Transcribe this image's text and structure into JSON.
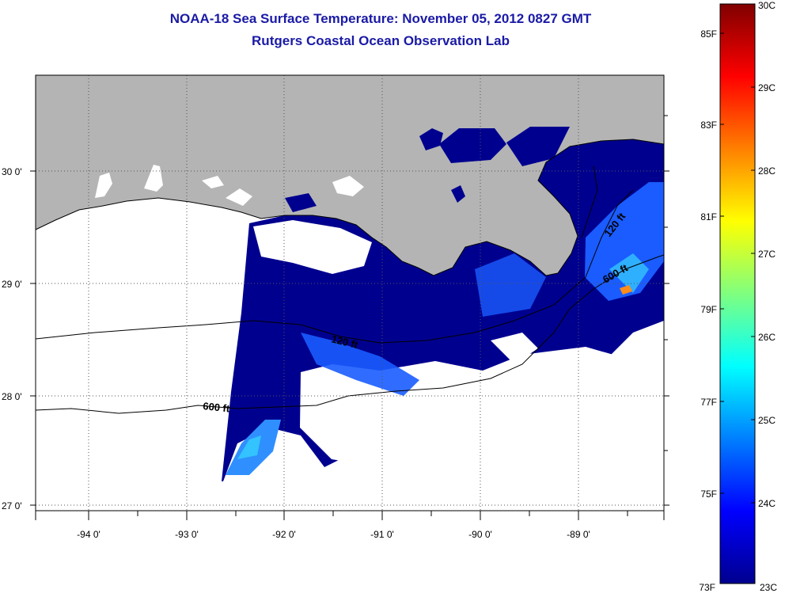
{
  "title": "NOAA-18 Sea Surface Temperature:  November 05, 2012 0827 GMT",
  "subtitle": "Rutgers Coastal Ocean Observation Lab",
  "map": {
    "lat_labels": [
      "30 0'",
      "29 0'",
      "28 0'",
      "27 0'"
    ],
    "lon_labels": [
      "-94 0'",
      "-93 0'",
      "-92 0'",
      "-91 0'",
      "-90 0'",
      "-89 0'"
    ],
    "contour_labels": [
      "120 ft",
      "600 ft",
      "120 ft",
      "600 ft"
    ],
    "colors": {
      "land": "#b4b4b4",
      "sea_cold": "#00008f",
      "grid": "#555555"
    }
  },
  "colorbar": {
    "celsius_labels": [
      "30C",
      "29C",
      "28C",
      "27C",
      "26C",
      "25C",
      "24C",
      "23C"
    ],
    "fahrenheit_labels": [
      "85F",
      "83F",
      "81F",
      "79F",
      "77F",
      "75F",
      "73F"
    ],
    "range_c": [
      23,
      30
    ],
    "colormap": "jet"
  }
}
